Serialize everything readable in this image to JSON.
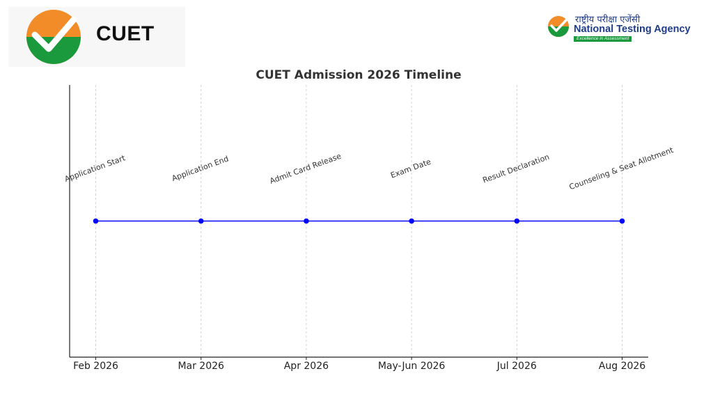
{
  "header": {
    "cuet_logo_text": "CUET",
    "nta_hindi": "राष्ट्रीय परीक्षा एजेंसी",
    "nta_name": "National Testing Agency",
    "nta_tagline": "Excellence in Assessment"
  },
  "colors": {
    "series_line": "#0000ff",
    "grid": "#c8c8c8",
    "logo_orange": "#f28c28",
    "logo_green": "#1a9a3c",
    "nta_blue": "#1f3c8a"
  },
  "chart_data": {
    "type": "line",
    "title": "CUET Admission 2026 Timeline",
    "xlabel": "",
    "ylabel": "",
    "x": [
      "Feb 2026",
      "Mar 2026",
      "Apr 2026",
      "May-Jun 2026",
      "Jul 2026",
      "Aug 2026"
    ],
    "events": [
      "Application Start",
      "Application End",
      "Admit Card Release",
      "Exam Date",
      "Result Declaration",
      "Counseling & Seat Allotment"
    ],
    "series": [
      {
        "values": [
          1,
          1,
          1,
          1,
          1,
          1
        ]
      }
    ],
    "ylim": [
      0.5,
      1.5
    ],
    "grid": "vertical dashed",
    "legend": "none"
  }
}
